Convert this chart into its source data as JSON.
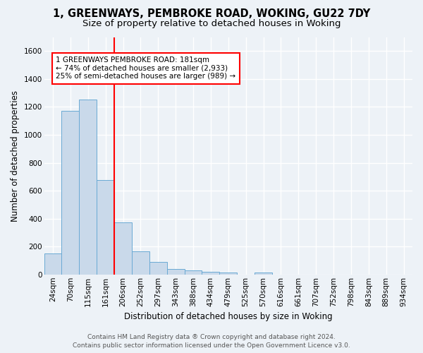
{
  "title1": "1, GREENWAYS, PEMBROKE ROAD, WOKING, GU22 7DY",
  "title2": "Size of property relative to detached houses in Woking",
  "xlabel": "Distribution of detached houses by size in Woking",
  "ylabel": "Number of detached properties",
  "footer1": "Contains HM Land Registry data ® Crown copyright and database right 2024.",
  "footer2": "Contains public sector information licensed under the Open Government Licence v3.0.",
  "bar_labels": [
    "24sqm",
    "70sqm",
    "115sqm",
    "161sqm",
    "206sqm",
    "252sqm",
    "297sqm",
    "343sqm",
    "388sqm",
    "434sqm",
    "479sqm",
    "525sqm",
    "570sqm",
    "616sqm",
    "661sqm",
    "707sqm",
    "752sqm",
    "798sqm",
    "843sqm",
    "889sqm",
    "934sqm"
  ],
  "bar_values": [
    150,
    1170,
    1255,
    675,
    375,
    168,
    90,
    38,
    28,
    18,
    13,
    0,
    12,
    0,
    0,
    0,
    0,
    0,
    0,
    0,
    0
  ],
  "bar_color": "#c9d9ea",
  "bar_edge_color": "#6aaad4",
  "red_line_x": 3.5,
  "annotation_line1": "1 GREENWAYS PEMBROKE ROAD: 181sqm",
  "annotation_line2": "← 74% of detached houses are smaller (2,933)",
  "annotation_line3": "25% of semi-detached houses are larger (989) →",
  "annotation_box_color": "white",
  "annotation_box_edge_color": "red",
  "ylim": [
    0,
    1700
  ],
  "yticks": [
    0,
    200,
    400,
    600,
    800,
    1000,
    1200,
    1400,
    1600
  ],
  "background_color": "#edf2f7",
  "grid_color": "white",
  "title_fontsize": 10.5,
  "subtitle_fontsize": 9.5,
  "axis_label_fontsize": 8.5,
  "tick_fontsize": 7.5,
  "annotation_fontsize": 7.5,
  "footer_fontsize": 6.5
}
